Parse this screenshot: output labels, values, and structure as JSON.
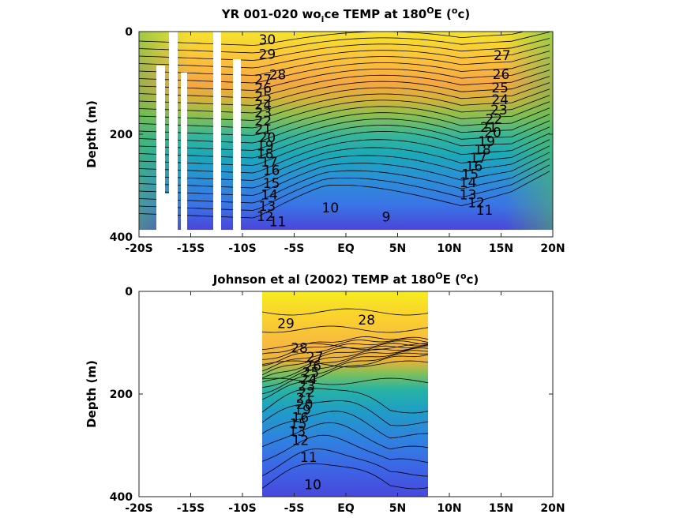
{
  "chart_data": [
    {
      "type": "heatmap",
      "title": "YR 001-020 wo ice TEMP at 180°E (°c)",
      "title_parts": {
        "pre": "YR 001-020 wo",
        "sub": "i",
        "post": "ce TEMP at 180",
        "deg1": "O",
        "mid": "E (",
        "deg2": "o",
        "end": "c)"
      },
      "ylabel": "Depth (m)",
      "xlim": [
        -20,
        20
      ],
      "ylim": [
        0,
        400
      ],
      "y_reversed": true,
      "x_ticks": [
        -20,
        -15,
        -10,
        -5,
        0,
        5,
        10,
        15,
        20
      ],
      "x_tick_labels": [
        "-20S",
        "-15S",
        "-10S",
        "-5S",
        "EQ",
        "5N",
        "10N",
        "15N",
        "20N"
      ],
      "y_ticks": [
        0,
        200,
        400
      ],
      "y_tick_labels": [
        "0",
        "200",
        "400"
      ],
      "data_extent": {
        "lon": [
          -20,
          20
        ],
        "depth": [
          0,
          385
        ]
      },
      "contour_labels": [
        {
          "text": "30",
          "x": -7.6,
          "depth": 15
        },
        {
          "text": "29",
          "x": -7.6,
          "depth": 44
        },
        {
          "text": "28",
          "x": -6.6,
          "depth": 84
        },
        {
          "text": "27",
          "x": -8.0,
          "depth": 93
        },
        {
          "text": "26",
          "x": -8.0,
          "depth": 110
        },
        {
          "text": "25",
          "x": -8.0,
          "depth": 126
        },
        {
          "text": "24",
          "x": -8.0,
          "depth": 142
        },
        {
          "text": "23",
          "x": -8.0,
          "depth": 158
        },
        {
          "text": "22",
          "x": -8.0,
          "depth": 174
        },
        {
          "text": "21",
          "x": -8.0,
          "depth": 190
        },
        {
          "text": "20",
          "x": -7.6,
          "depth": 206
        },
        {
          "text": "19",
          "x": -7.8,
          "depth": 222
        },
        {
          "text": "18",
          "x": -7.8,
          "depth": 238
        },
        {
          "text": "17",
          "x": -7.4,
          "depth": 254
        },
        {
          "text": "16",
          "x": -7.2,
          "depth": 270
        },
        {
          "text": "15",
          "x": -7.2,
          "depth": 295
        },
        {
          "text": "14",
          "x": -7.4,
          "depth": 318
        },
        {
          "text": "13",
          "x": -7.6,
          "depth": 340
        },
        {
          "text": "12",
          "x": -7.8,
          "depth": 360
        },
        {
          "text": "11",
          "x": -6.6,
          "depth": 370
        },
        {
          "text": "10",
          "x": -1.5,
          "depth": 343
        },
        {
          "text": "9",
          "x": 3.9,
          "depth": 361
        },
        {
          "text": "27",
          "x": 15.1,
          "depth": 46
        },
        {
          "text": "26",
          "x": 15.0,
          "depth": 83
        },
        {
          "text": "25",
          "x": 14.9,
          "depth": 109
        },
        {
          "text": "24",
          "x": 14.9,
          "depth": 132
        },
        {
          "text": "23",
          "x": 14.8,
          "depth": 152
        },
        {
          "text": "22",
          "x": 14.3,
          "depth": 170
        },
        {
          "text": "21",
          "x": 13.8,
          "depth": 186
        },
        {
          "text": "20",
          "x": 14.2,
          "depth": 196
        },
        {
          "text": "19",
          "x": 13.6,
          "depth": 214
        },
        {
          "text": "18",
          "x": 13.2,
          "depth": 230
        },
        {
          "text": "17",
          "x": 12.8,
          "depth": 246
        },
        {
          "text": "16",
          "x": 12.4,
          "depth": 262
        },
        {
          "text": "15",
          "x": 12.0,
          "depth": 278
        },
        {
          "text": "14",
          "x": 11.8,
          "depth": 294
        },
        {
          "text": "13",
          "x": 11.8,
          "depth": 318
        },
        {
          "text": "12",
          "x": 12.6,
          "depth": 333
        },
        {
          "text": "11",
          "x": 13.4,
          "depth": 348
        }
      ]
    },
    {
      "type": "heatmap",
      "title": "Johnson et al (2002) TEMP at 180°E (°c)",
      "title_parts": {
        "pre": "Johnson et al (2002) TEMP at 180",
        "deg1": "O",
        "mid": "E (",
        "deg2": "o",
        "end": "c)"
      },
      "ylabel": "Depth (m)",
      "xlim": [
        -20,
        20
      ],
      "ylim": [
        0,
        400
      ],
      "y_reversed": true,
      "x_ticks": [
        -20,
        -15,
        -10,
        -5,
        0,
        5,
        10,
        15,
        20
      ],
      "x_tick_labels": [
        "-20S",
        "-15S",
        "-10S",
        "-5S",
        "EQ",
        "5N",
        "10N",
        "15N",
        "20N"
      ],
      "y_ticks": [
        0,
        200,
        400
      ],
      "y_tick_labels": [
        "0",
        "200",
        "400"
      ],
      "data_extent": {
        "lon": [
          -8,
          8
        ],
        "depth": [
          0,
          400
        ]
      },
      "contour_labels": [
        {
          "text": "29",
          "x": -5.8,
          "depth": 62
        },
        {
          "text": "28",
          "x": 2.0,
          "depth": 55
        },
        {
          "text": "28",
          "x": -4.5,
          "depth": 110
        },
        {
          "text": "27",
          "x": -3.0,
          "depth": 128
        },
        {
          "text": "26",
          "x": -3.2,
          "depth": 145
        },
        {
          "text": "25",
          "x": -3.4,
          "depth": 158
        },
        {
          "text": "24",
          "x": -3.6,
          "depth": 171
        },
        {
          "text": "23",
          "x": -3.8,
          "depth": 184
        },
        {
          "text": "22",
          "x": -3.8,
          "depth": 196
        },
        {
          "text": "21",
          "x": -4.0,
          "depth": 208
        },
        {
          "text": "20",
          "x": -4.0,
          "depth": 220
        },
        {
          "text": "19",
          "x": -4.2,
          "depth": 231
        },
        {
          "text": "16",
          "x": -4.4,
          "depth": 245
        },
        {
          "text": "15",
          "x": -4.6,
          "depth": 258
        },
        {
          "text": "13",
          "x": -4.7,
          "depth": 272
        },
        {
          "text": "12",
          "x": -4.4,
          "depth": 290
        },
        {
          "text": "11",
          "x": -3.6,
          "depth": 323
        },
        {
          "text": "10",
          "x": -3.2,
          "depth": 376
        }
      ]
    }
  ]
}
